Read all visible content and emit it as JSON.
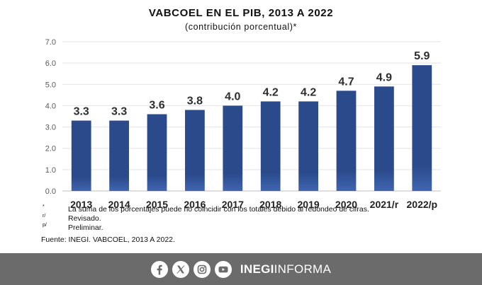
{
  "chart_data": {
    "type": "bar",
    "title": "VABCOEL EN EL PIB, 2013 A 2022",
    "subtitle": "(contribución porcentual)*",
    "categories": [
      "2013",
      "2014",
      "2015",
      "2016",
      "2017",
      "2018",
      "2019",
      "2020",
      "2021/r",
      "2022/p"
    ],
    "values": [
      3.3,
      3.3,
      3.6,
      3.8,
      4.0,
      4.2,
      4.2,
      4.7,
      4.9,
      5.9
    ],
    "value_labels": [
      "3.3",
      "3.3",
      "3.6",
      "3.8",
      "4.0",
      "4.2",
      "4.2",
      "4.7",
      "4.9",
      "5.9"
    ],
    "ylim": [
      0,
      7
    ],
    "yticks": [
      "0.0",
      "1.0",
      "2.0",
      "3.0",
      "4.0",
      "5.0",
      "6.0",
      "7.0"
    ],
    "grid": true,
    "xlabel": "",
    "ylabel": "",
    "bar_color": "#2b4a8c",
    "bar_color_light": "#4065b0"
  },
  "notes": [
    {
      "mark": "*",
      "text": "La suma de los porcentajes puede no coincidir con los totales debido al redondeo de cifras."
    },
    {
      "mark": "r/",
      "text": "Revisado."
    },
    {
      "mark": "p/",
      "text": "Preliminar."
    }
  ],
  "source": "Fuente: INEGI. VABCOEL, 2013 A 2022.",
  "footer": {
    "icons": [
      "facebook-icon",
      "x-icon",
      "instagram-icon",
      "youtube-icon"
    ],
    "brand_bold": "INEGI",
    "brand_light": "INFORMA",
    "background": "#6b6b6b"
  }
}
